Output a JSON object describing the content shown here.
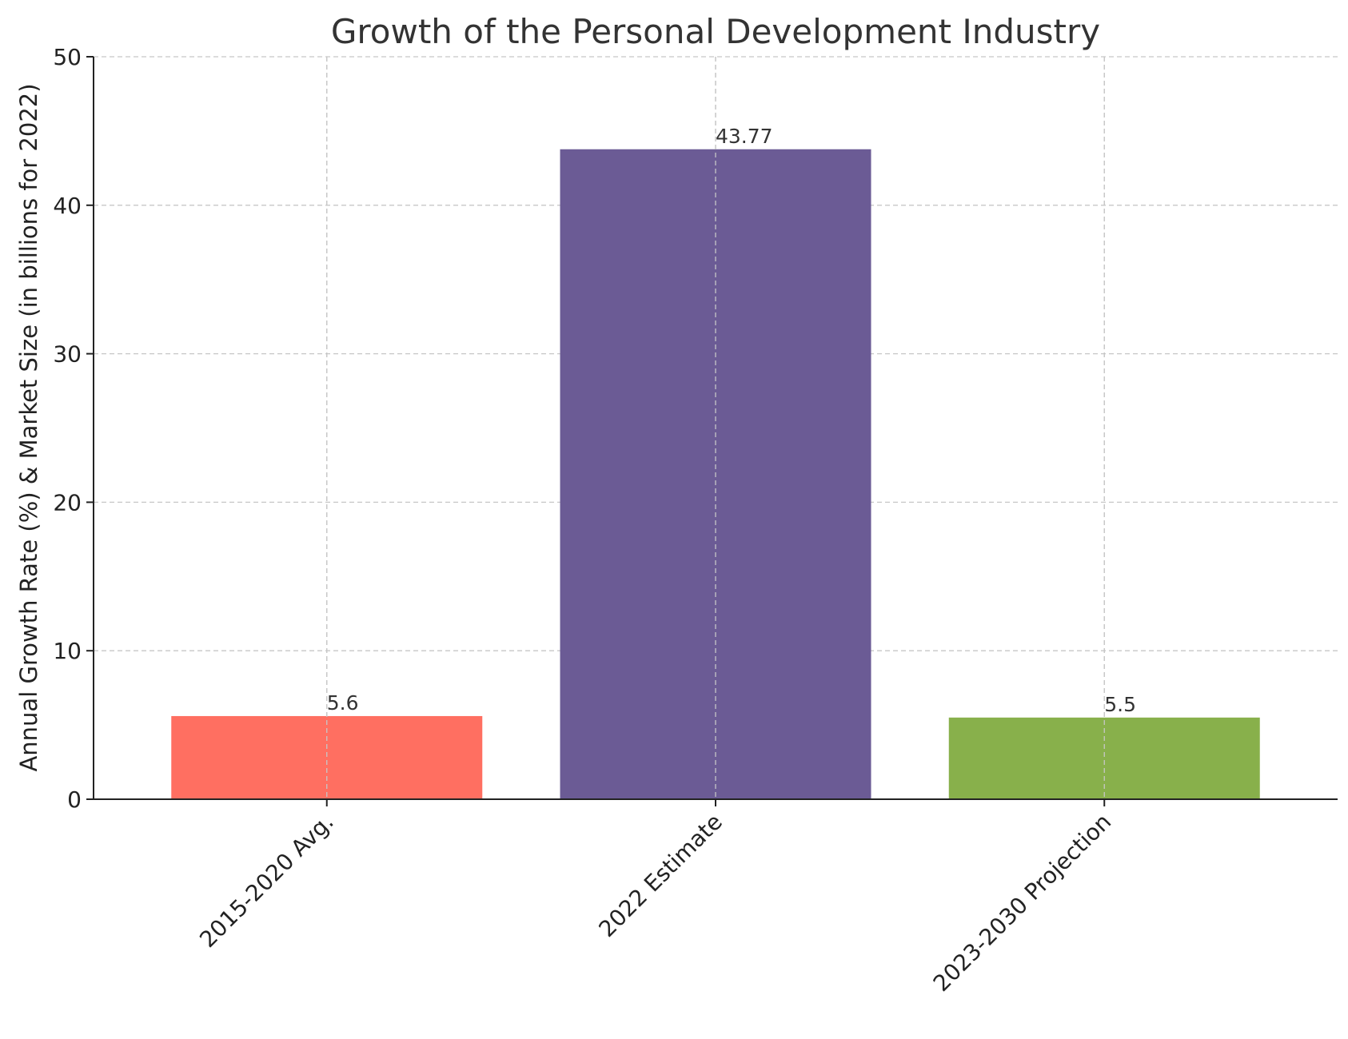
{
  "chart_data": {
    "type": "bar",
    "title": "Growth of the Personal Development Industry",
    "xlabel": "",
    "ylabel": "Annual Growth Rate (%) & Market Size (in billions for 2022)",
    "categories": [
      "2015-2020 Avg.",
      "2022 Estimate",
      "2023-2030 Projection"
    ],
    "values": [
      5.6,
      43.77,
      5.5
    ],
    "value_labels": [
      "5.6",
      "43.77",
      "5.5"
    ],
    "colors": [
      "#ff6f61",
      "#6b5b95",
      "#88b04b"
    ],
    "ylim": [
      0,
      50
    ],
    "yticks": [
      0,
      10,
      20,
      30,
      40,
      50
    ],
    "grid": true,
    "legend": "none"
  }
}
